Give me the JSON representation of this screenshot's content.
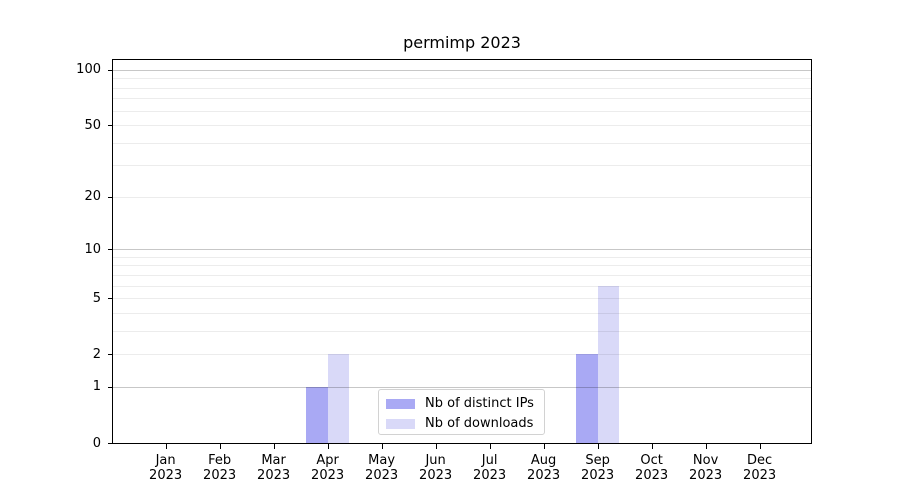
{
  "figure": {
    "title": "permimp 2023"
  },
  "chart_data": {
    "type": "bar",
    "title": "permimp 2023",
    "xlabel": "",
    "ylabel": "",
    "x_axis": {
      "categories": [
        {
          "month": "Jan",
          "year": "2023"
        },
        {
          "month": "Feb",
          "year": "2023"
        },
        {
          "month": "Mar",
          "year": "2023"
        },
        {
          "month": "Apr",
          "year": "2023"
        },
        {
          "month": "May",
          "year": "2023"
        },
        {
          "month": "Jun",
          "year": "2023"
        },
        {
          "month": "Jul",
          "year": "2023"
        },
        {
          "month": "Aug",
          "year": "2023"
        },
        {
          "month": "Sep",
          "year": "2023"
        },
        {
          "month": "Oct",
          "year": "2023"
        },
        {
          "month": "Nov",
          "year": "2023"
        },
        {
          "month": "Dec",
          "year": "2023"
        }
      ]
    },
    "y_axis": {
      "scale": "log1p",
      "ticks": [
        0,
        1,
        2,
        5,
        10,
        20,
        50,
        100
      ],
      "major_gridlines": [
        1,
        10,
        100
      ],
      "minor_gridlines": [
        2,
        3,
        4,
        5,
        6,
        7,
        8,
        9,
        20,
        30,
        40,
        50,
        60,
        70,
        80,
        90
      ],
      "min": 0,
      "max": 113
    },
    "series": [
      {
        "name": "Nb of distinct IPs",
        "color": "#a9a9f4",
        "values": [
          0,
          0,
          0,
          1,
          0,
          0,
          0,
          0,
          2,
          0,
          0,
          0
        ]
      },
      {
        "name": "Nb of downloads",
        "color": "#d9d9f8",
        "values": [
          0,
          0,
          0,
          2,
          0,
          0,
          0,
          0,
          6,
          0,
          0,
          0
        ]
      }
    ],
    "legend": {
      "position": "lower center",
      "items": [
        "Nb of distinct IPs",
        "Nb of downloads"
      ]
    },
    "grid": {
      "major_color": "rgba(0,0,0,0.22)",
      "minor_color": "rgba(0,0,0,0.075)",
      "drawn_above_bars": true
    },
    "colors": {
      "axis": "#000000",
      "background": "#ffffff"
    }
  }
}
